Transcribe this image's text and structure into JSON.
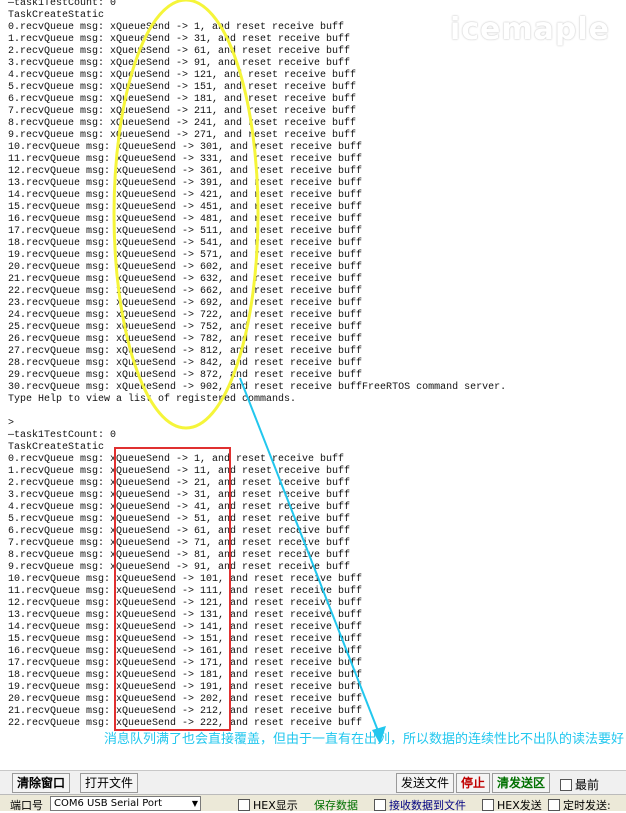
{
  "watermark": "icemaple",
  "terminal": {
    "lines": [
      "—task1TestCount: 0",
      "TaskCreateStatic",
      "0.recvQueue msg: xQueueSend -> 1, and reset receive buff",
      "1.recvQueue msg: xQueueSend -> 31, and reset receive buff",
      "2.recvQueue msg: xQueueSend -> 61, and reset receive buff",
      "3.recvQueue msg: xQueueSend -> 91, and reset receive buff",
      "4.recvQueue msg: xQueueSend -> 121, and reset receive buff",
      "5.recvQueue msg: xQueueSend -> 151, and reset receive buff",
      "6.recvQueue msg: xQueueSend -> 181, and reset receive buff",
      "7.recvQueue msg: xQueueSend -> 211, and reset receive buff",
      "8.recvQueue msg: xQueueSend -> 241, and reset receive buff",
      "9.recvQueue msg: xQueueSend -> 271, and reset receive buff",
      "10.recvQueue msg: xQueueSend -> 301, and reset receive buff",
      "11.recvQueue msg: xQueueSend -> 331, and reset receive buff",
      "12.recvQueue msg: xQueueSend -> 361, and reset receive buff",
      "13.recvQueue msg: xQueueSend -> 391, and reset receive buff",
      "14.recvQueue msg: xQueueSend -> 421, and reset receive buff",
      "15.recvQueue msg: xQueueSend -> 451, and reset receive buff",
      "16.recvQueue msg: xQueueSend -> 481, and reset receive buff",
      "17.recvQueue msg: xQueueSend -> 511, and reset receive buff",
      "18.recvQueue msg: xQueueSend -> 541, and reset receive buff",
      "19.recvQueue msg: xQueueSend -> 571, and reset receive buff",
      "20.recvQueue msg: xQueueSend -> 602, and reset receive buff",
      "21.recvQueue msg: xQueueSend -> 632, and reset receive buff",
      "22.recvQueue msg: xQueueSend -> 662, and reset receive buff",
      "23.recvQueue msg: xQueueSend -> 692, and reset receive buff",
      "24.recvQueue msg: xQueueSend -> 722, and reset receive buff",
      "25.recvQueue msg: xQueueSend -> 752, and reset receive buff",
      "26.recvQueue msg: xQueueSend -> 782, and reset receive buff",
      "27.recvQueue msg: xQueueSend -> 812, and reset receive buff",
      "28.recvQueue msg: xQueueSend -> 842, and reset receive buff",
      "29.recvQueue msg: xQueueSend -> 872, and reset receive buff",
      "30.recvQueue msg: xQueueSend -> 902, and reset receive buffFreeRTOS command server.",
      "Type Help to view a list of registered commands.",
      "",
      ">",
      "—task1TestCount: 0",
      "TaskCreateStatic",
      "0.recvQueue msg: xQueueSend -> 1, and reset receive buff",
      "1.recvQueue msg: xQueueSend -> 11, and reset receive buff",
      "2.recvQueue msg: xQueueSend -> 21, and reset receive buff",
      "3.recvQueue msg: xQueueSend -> 31, and reset receive buff",
      "4.recvQueue msg: xQueueSend -> 41, and reset receive buff",
      "5.recvQueue msg: xQueueSend -> 51, and reset receive buff",
      "6.recvQueue msg: xQueueSend -> 61, and reset receive buff",
      "7.recvQueue msg: xQueueSend -> 71, and reset receive buff",
      "8.recvQueue msg: xQueueSend -> 81, and reset receive buff",
      "9.recvQueue msg: xQueueSend -> 91, and reset receive buff",
      "10.recvQueue msg: xQueueSend -> 101, and reset receive buff",
      "11.recvQueue msg: xQueueSend -> 111, and reset receive buff",
      "12.recvQueue msg: xQueueSend -> 121, and reset receive buff",
      "13.recvQueue msg: xQueueSend -> 131, and reset receive buff",
      "14.recvQueue msg: xQueueSend -> 141, and reset receive buff",
      "15.recvQueue msg: xQueueSend -> 151, and reset receive buff",
      "16.recvQueue msg: xQueueSend -> 161, and reset receive buff",
      "17.recvQueue msg: xQueueSend -> 171, and reset receive buff",
      "18.recvQueue msg: xQueueSend -> 181, and reset receive buff",
      "19.recvQueue msg: xQueueSend -> 191, and reset receive buff",
      "20.recvQueue msg: xQueueSend -> 202, and reset receive buff",
      "21.recvQueue msg: xQueueSend -> 212, and reset receive buff",
      "22.recvQueue msg: xQueueSend -> 222, and reset receive buff"
    ]
  },
  "annotation": {
    "text": "消息队列满了也会直接覆盖，但由于一直有在出列，所以数据的连续性比不出队的读法要好",
    "color": "#22c7ee"
  },
  "highlight_colors": {
    "ellipse": "#f5f53a",
    "box": "#e03030",
    "arrow": "#22c7ee"
  },
  "toolbar": {
    "clear_label": "清除窗口",
    "open_file_label": "打开文件",
    "send_file_label": "发送文件",
    "stop_label": "停止",
    "clear_send_label": "清发送区",
    "topmost_label": "最前"
  },
  "statusbar": {
    "port_label": "端口号",
    "port_value": "COM6 USB Serial Port",
    "hex_display_label": "HEX显示",
    "save_data_label": "保存数据",
    "recv_to_file_label": "接收数据到文件",
    "hex_send_label": "HEX发送",
    "timed_send_label": "定时发送:"
  }
}
